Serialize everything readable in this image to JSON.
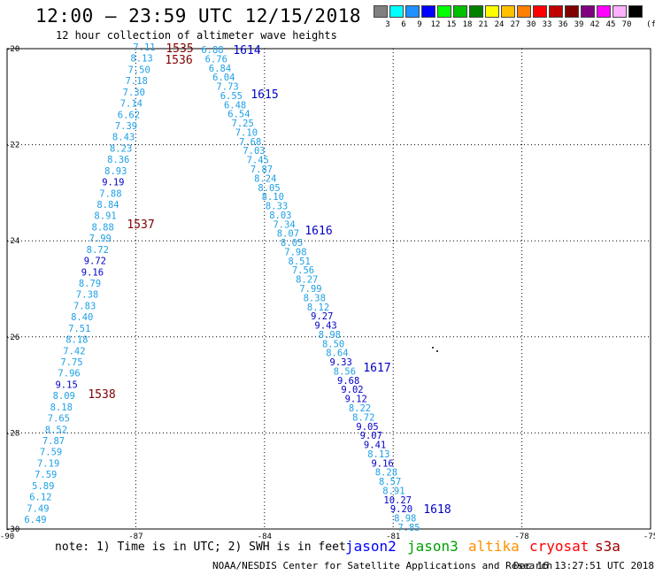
{
  "header": {
    "title": "12:00 – 23:59 UTC 12/15/2018",
    "subtitle": "12 hour collection of altimeter wave heights"
  },
  "legend": {
    "unit": "(ft)",
    "items": [
      {
        "label": "3",
        "color": "#808080"
      },
      {
        "label": "6",
        "color": "#00ffff"
      },
      {
        "label": "9",
        "color": "#1e90ff"
      },
      {
        "label": "12",
        "color": "#0000ff"
      },
      {
        "label": "15",
        "color": "#00ff00"
      },
      {
        "label": "18",
        "color": "#00c000"
      },
      {
        "label": "21",
        "color": "#008000"
      },
      {
        "label": "24",
        "color": "#ffff00"
      },
      {
        "label": "27",
        "color": "#ffc000"
      },
      {
        "label": "30",
        "color": "#ff8000"
      },
      {
        "label": "33",
        "color": "#ff0000"
      },
      {
        "label": "36",
        "color": "#c00000"
      },
      {
        "label": "39",
        "color": "#800000"
      },
      {
        "label": "42",
        "color": "#800080"
      },
      {
        "label": "45",
        "color": "#ff00ff"
      },
      {
        "label": "70",
        "color": "#ffb0ff"
      },
      {
        "label": "",
        "color": "#000000"
      }
    ]
  },
  "map": {
    "lon_range": [
      -90,
      -75
    ],
    "lat_range": [
      -30,
      -20
    ],
    "lon_ticks": [
      "-90",
      "-87",
      "-84",
      "-81",
      "-78",
      "-75"
    ],
    "lat_ticks": [
      "-20",
      "-22",
      "-24",
      "-26",
      "-28",
      "-30"
    ],
    "grid": true,
    "value_colors": {
      "light": "#1ea0e6",
      "dark": "#0000c8"
    },
    "track1_values": [
      "7.11",
      "8.13",
      "7.50",
      "7.18",
      "7.30",
      "7.14",
      "6.62",
      "7.39",
      "8.43",
      "8.23",
      "8.36",
      "8.93",
      "9.19",
      "7.88",
      "8.84",
      "8.91",
      "8.88",
      "7.99",
      "8.72",
      "9.72",
      "9.16",
      "8.79",
      "7.38",
      "7.83",
      "8.40",
      "7.51",
      "8.18",
      "7.42",
      "7.75",
      "7.96",
      "9.15",
      "8.09",
      "8.18",
      "7.65",
      "8.52",
      "7.87",
      "7.59",
      "7.19",
      "7.59",
      "5.89",
      "6.12",
      "7.49",
      "6.49"
    ],
    "track1_times": [
      {
        "label": "1535",
        "color": "#800000"
      },
      {
        "label": "1536",
        "color": "#800000"
      },
      {
        "label": "1537",
        "color": "#800000"
      },
      {
        "label": "1538",
        "color": "#800000"
      }
    ],
    "track2_values": [
      "6.88",
      "6.76",
      "6.84",
      "6.04",
      "7.73",
      "6.55",
      "6.48",
      "6.54",
      "7.25",
      "7.10",
      "7.68",
      "7.03",
      "7.45",
      "7.87",
      "8.24",
      "8.05",
      "8.10",
      "8.33",
      "8.03",
      "7.34",
      "8.07",
      "8.05",
      "7.98",
      "8.51",
      "7.56",
      "8.27",
      "7.99",
      "8.38",
      "8.12",
      "9.27",
      "9.43",
      "8.98",
      "8.50",
      "8.64",
      "9.33",
      "8.56",
      "9.68",
      "9.02",
      "9.12",
      "8.22",
      "8.72",
      "9.05",
      "9.07",
      "9.41",
      "8.13",
      "9.16",
      "8.28",
      "8.57",
      "8.91",
      "10.27",
      "9.20",
      "8.98",
      "7.85"
    ],
    "track2_times": [
      {
        "label": "1614",
        "color": "#0000c8"
      },
      {
        "label": "1615",
        "color": "#0000c8"
      },
      {
        "label": "1616",
        "color": "#0000c8"
      },
      {
        "label": "1617",
        "color": "#0000c8"
      },
      {
        "label": "1618",
        "color": "#0000c8"
      }
    ]
  },
  "note": "note: 1) Time is in UTC; 2) SWH is in feet",
  "satellites": [
    {
      "label": "jason2",
      "color": "#0000ff"
    },
    {
      "label": "jason3",
      "color": "#00a000"
    },
    {
      "label": "altika",
      "color": "#ff9000"
    },
    {
      "label": "cryosat",
      "color": "#ff0000"
    },
    {
      "label": "s3a",
      "color": "#a00000"
    }
  ],
  "footer": {
    "credit": "NOAA/NESDIS Center for Satellite Applications and Research",
    "timestamp": "Dec 16 13:27:51 UTC 2018"
  }
}
